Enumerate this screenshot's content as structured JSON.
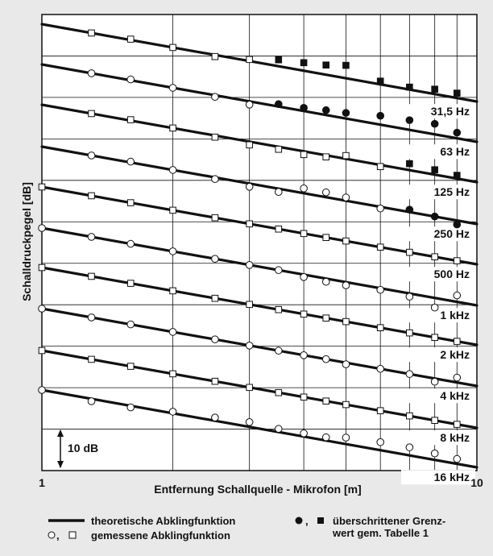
{
  "chart_data": {
    "type": "line",
    "xscale": "log",
    "xlim": [
      1,
      10
    ],
    "grid": true,
    "xlabel": "Entfernung Schallquelle - Mikrofon [m]",
    "ylabel": "Schalldruckpegel [dB]",
    "xtick_labels": [
      "1",
      "10"
    ],
    "scale_bar_label": "10 dB",
    "legend": {
      "theoretical": "theoretische Abklingfunktion",
      "measured_symbols": "○, □",
      "measured": "gemessene Abklingfunktion",
      "exceeded_symbols": "●, ■",
      "exceeded_line1": "überschrittener Grenz-",
      "exceeded_line2": "wert gem. Tabelle 1"
    },
    "bands": [
      {
        "label": "31,5 Hz",
        "marker": "square",
        "x": [
          1.3,
          1.6,
          2,
          2.5,
          3,
          3.5,
          4,
          4.5,
          5,
          6,
          7,
          8,
          9
        ],
        "filled": [
          0,
          0,
          0,
          0,
          0,
          1,
          1,
          1,
          1,
          1,
          1,
          1,
          1
        ]
      },
      {
        "label": "63 Hz",
        "marker": "circle",
        "x": [
          1.3,
          1.6,
          2,
          2.5,
          3,
          3.5,
          4,
          4.5,
          5,
          6,
          7,
          8,
          9
        ],
        "filled": [
          0,
          0,
          0,
          0,
          0,
          1,
          1,
          1,
          1,
          1,
          1,
          1,
          1
        ]
      },
      {
        "label": "125 Hz",
        "marker": "square",
        "x": [
          1.3,
          1.6,
          2,
          2.5,
          3,
          3.5,
          4,
          4.5,
          5,
          6,
          7,
          8,
          9
        ],
        "filled": [
          0,
          0,
          0,
          0,
          0,
          0,
          0,
          0,
          0,
          0,
          1,
          1,
          1
        ]
      },
      {
        "label": "250 Hz",
        "marker": "circle",
        "x": [
          1.3,
          1.6,
          2,
          2.5,
          3,
          3.5,
          4,
          4.5,
          5,
          6,
          7,
          8,
          9
        ],
        "filled": [
          0,
          0,
          0,
          0,
          0,
          0,
          0,
          0,
          0,
          0,
          1,
          1,
          1
        ]
      },
      {
        "label": "500 Hz",
        "marker": "square",
        "x": [
          1,
          1.3,
          1.6,
          2,
          2.5,
          3,
          3.5,
          4,
          4.5,
          5,
          6,
          7,
          8,
          9
        ],
        "filled": [
          0,
          0,
          0,
          0,
          0,
          0,
          0,
          0,
          0,
          0,
          0,
          0,
          0,
          0
        ]
      },
      {
        "label": "1 kHz",
        "marker": "circle",
        "x": [
          1,
          1.3,
          1.6,
          2,
          2.5,
          3,
          3.5,
          4,
          4.5,
          5,
          6,
          7,
          8,
          9
        ],
        "filled": [
          0,
          0,
          0,
          0,
          0,
          0,
          0,
          0,
          0,
          0,
          0,
          0,
          0,
          0
        ]
      },
      {
        "label": "2 kHz",
        "marker": "square",
        "x": [
          1,
          1.3,
          1.6,
          2,
          2.5,
          3,
          3.5,
          4,
          4.5,
          5,
          6,
          7,
          8,
          9
        ],
        "filled": [
          0,
          0,
          0,
          0,
          0,
          0,
          0,
          0,
          0,
          0,
          0,
          0,
          0,
          0
        ]
      },
      {
        "label": "4 kHz",
        "marker": "circle",
        "x": [
          1,
          1.3,
          1.6,
          2,
          2.5,
          3,
          3.5,
          4,
          4.5,
          5,
          6,
          7,
          8,
          9
        ],
        "filled": [
          0,
          0,
          0,
          0,
          0,
          0,
          0,
          0,
          0,
          0,
          0,
          0,
          0,
          0
        ]
      },
      {
        "label": "8 kHz",
        "marker": "square",
        "x": [
          1,
          1.3,
          1.6,
          2,
          2.5,
          3,
          3.5,
          4,
          4.5,
          5,
          6,
          7,
          8,
          9
        ],
        "filled": [
          0,
          0,
          0,
          0,
          0,
          0,
          0,
          0,
          0,
          0,
          0,
          0,
          0,
          0
        ]
      },
      {
        "label": "16 kHz",
        "marker": "circle",
        "x": [
          1,
          1.3,
          1.6,
          2,
          2.5,
          3,
          3.5,
          4,
          4.5,
          5,
          6,
          7,
          8,
          9
        ],
        "filled": [
          0,
          0,
          0,
          0,
          0,
          0,
          0,
          0,
          0,
          0,
          0,
          0,
          0,
          0
        ]
      }
    ],
    "colors": {
      "background": "#e9e9e9",
      "plot": "#ffffff",
      "ink": "#111111"
    }
  }
}
